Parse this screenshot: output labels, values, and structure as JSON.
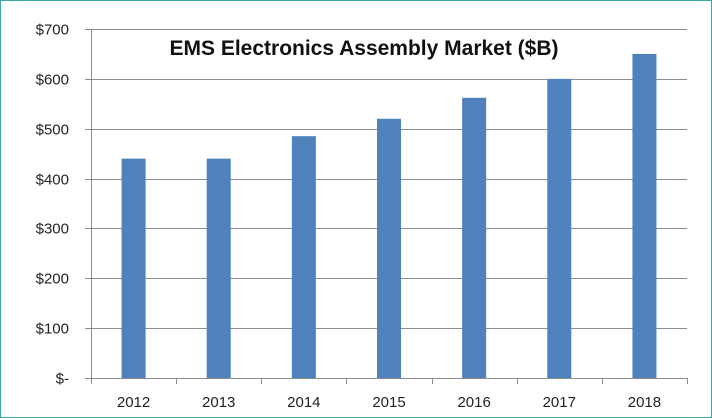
{
  "chart_data": {
    "type": "bar",
    "title": "EMS Electronics Assembly Market ($B)",
    "categories": [
      "2012",
      "2013",
      "2014",
      "2015",
      "2016",
      "2017",
      "2018"
    ],
    "values": [
      440,
      440,
      485,
      520,
      562,
      600,
      650
    ],
    "ylim": [
      0,
      700
    ],
    "yticks": [
      0,
      100,
      200,
      300,
      400,
      500,
      600,
      700
    ],
    "ytick_labels": [
      "$-",
      "$100",
      "$200",
      "$300",
      "$400",
      "$500",
      "$600",
      "$700"
    ],
    "xlabel": "",
    "ylabel": "",
    "grid": true,
    "legend": "none",
    "bar_color": "#4f81bd",
    "grid_color": "#8c8c8c",
    "frame_color": "#3aa6a0"
  }
}
